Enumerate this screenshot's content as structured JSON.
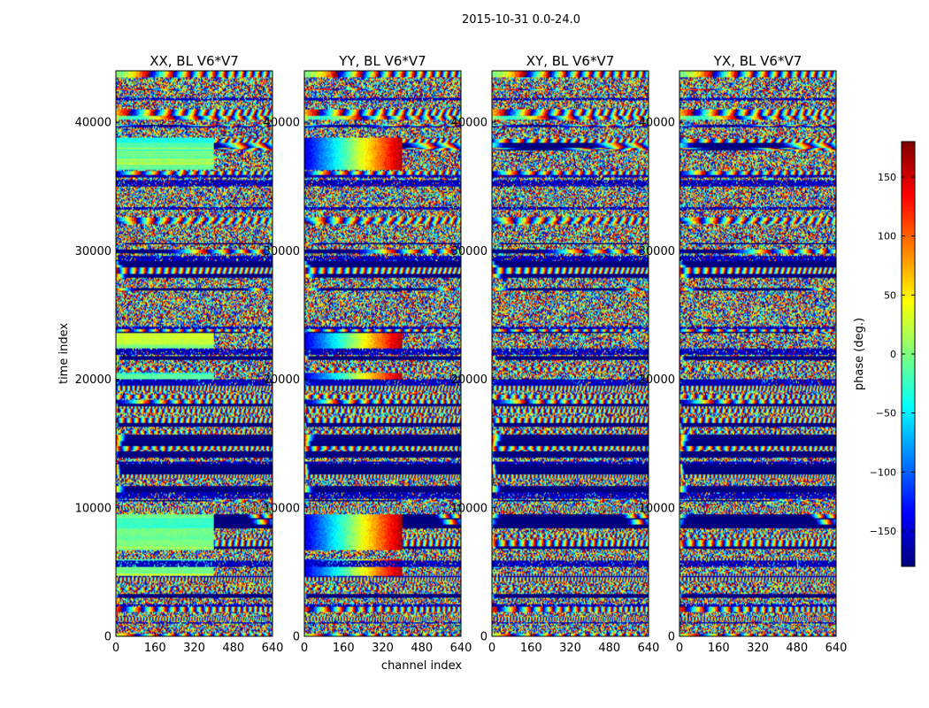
{
  "suptitle": "2015-10-31 0.0-24.0",
  "colormap": "jet",
  "colors": {
    "jet": [
      "#00007f",
      "#0000ff",
      "#007fff",
      "#00ffff",
      "#7fff7f",
      "#ffff00",
      "#ff7f00",
      "#ff0000",
      "#7f0000"
    ]
  },
  "chart_data": [
    {
      "type": "heatmap",
      "title": "XX, BL V6*V7",
      "xlabel": "",
      "ylabel": "time index",
      "xlim": [
        0,
        640
      ],
      "ylim": [
        0,
        44000
      ],
      "xticks": [
        "0",
        "160",
        "320",
        "480",
        "640"
      ],
      "yticks": [
        "0",
        "10000",
        "20000",
        "30000",
        "40000"
      ],
      "value_range": [
        -180,
        180
      ],
      "z_label": "phase (deg.)",
      "smooth_bands_time_index": [
        [
          4700,
          6000
        ],
        [
          6800,
          9500
        ],
        [
          20000,
          20500
        ],
        [
          22400,
          23600
        ],
        [
          36400,
          38800
        ]
      ]
    },
    {
      "type": "heatmap",
      "title": "YY, BL V6*V7",
      "xlabel": "channel index",
      "ylabel": "",
      "xlim": [
        0,
        640
      ],
      "ylim": [
        0,
        44000
      ],
      "xticks": [
        "0",
        "160",
        "320",
        "480",
        "640"
      ],
      "yticks": [
        "0",
        "10000",
        "20000",
        "30000",
        "40000"
      ],
      "value_range": [
        -180,
        180
      ],
      "z_label": "phase (deg.)",
      "smooth_bands_time_index": [
        [
          4700,
          6000
        ],
        [
          6800,
          9500
        ],
        [
          20000,
          20500
        ],
        [
          22400,
          23600
        ],
        [
          36400,
          38800
        ]
      ]
    },
    {
      "type": "heatmap",
      "title": "XY, BL V6*V7",
      "xlabel": "",
      "ylabel": "",
      "xlim": [
        0,
        640
      ],
      "ylim": [
        0,
        44000
      ],
      "xticks": [
        "0",
        "160",
        "320",
        "480",
        "640"
      ],
      "yticks": [
        "0",
        "10000",
        "20000",
        "30000",
        "40000"
      ],
      "value_range": [
        -180,
        180
      ],
      "z_label": "phase (deg.)"
    },
    {
      "type": "heatmap",
      "title": "YX, BL V6*V7",
      "xlabel": "",
      "ylabel": "",
      "xlim": [
        0,
        640
      ],
      "ylim": [
        0,
        44000
      ],
      "xticks": [
        "0",
        "160",
        "320",
        "480",
        "640"
      ],
      "yticks": [
        "0",
        "10000",
        "20000",
        "30000",
        "40000"
      ],
      "value_range": [
        -180,
        180
      ],
      "z_label": "phase (deg.)"
    }
  ],
  "colorbar": {
    "label": "phase (deg.)",
    "range": [
      -180,
      180
    ],
    "ticks": [
      {
        "value": 150,
        "label": "150"
      },
      {
        "value": 100,
        "label": "100"
      },
      {
        "value": 50,
        "label": "50"
      },
      {
        "value": 0,
        "label": "0"
      },
      {
        "value": -50,
        "label": "−50"
      },
      {
        "value": -100,
        "label": "−100"
      },
      {
        "value": -150,
        "label": "−150"
      }
    ]
  }
}
